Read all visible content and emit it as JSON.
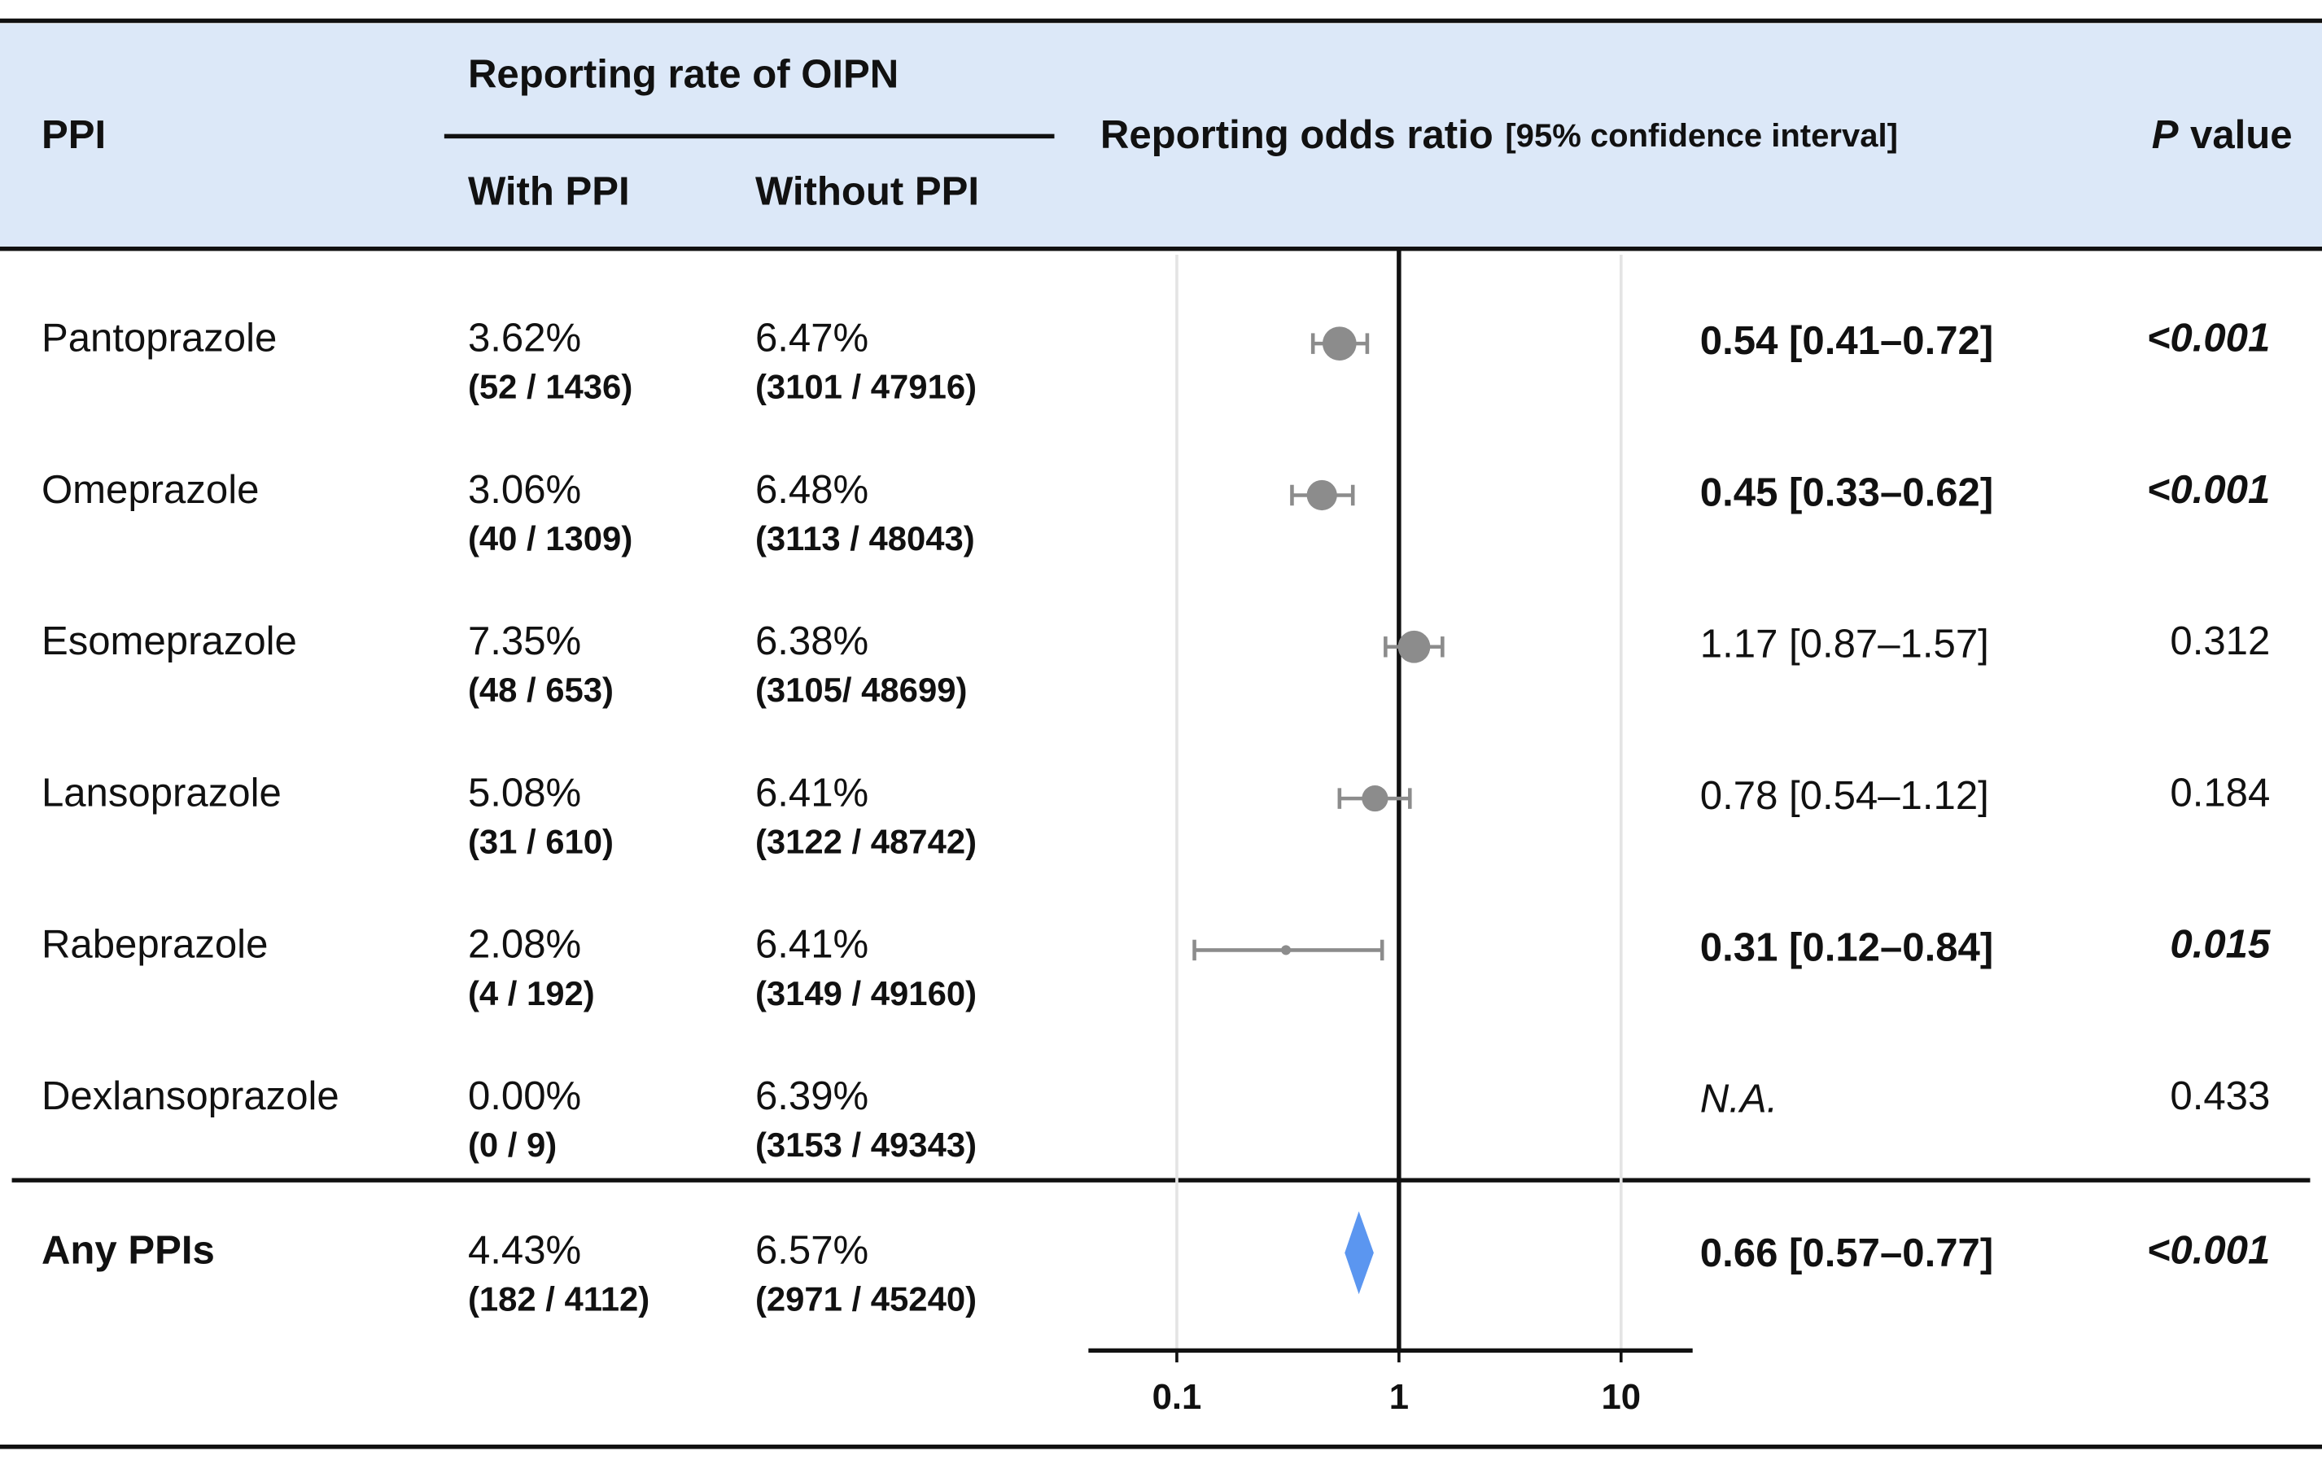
{
  "header": {
    "ppi": "PPI",
    "rate_group": "Reporting rate of OIPN",
    "with": "With PPI",
    "without": "Without PPI",
    "ror": "Reporting odds ratio",
    "ci": "[95% confidence interval]",
    "p_letter": "P",
    "p_rest": "value"
  },
  "chart_data": {
    "type": "forest",
    "categories": [
      "Pantoprazole",
      "Omeprazole",
      "Esomeprazole",
      "Lansoprazole",
      "Rabeprazole",
      "Dexlansoprazole",
      "Any PPIs"
    ],
    "with_rate": [
      "3.62%",
      "3.06%",
      "7.35%",
      "5.08%",
      "2.08%",
      "0.00%",
      "4.43%"
    ],
    "with_counts": [
      "(52 / 1436)",
      "(40 / 1309)",
      "(48 / 653)",
      "(31 / 610)",
      "(4 / 192)",
      "(0 / 9)",
      "(182 / 4112)"
    ],
    "without_rate": [
      "6.47%",
      "6.48%",
      "6.38%",
      "6.41%",
      "6.41%",
      "6.39%",
      "6.57%"
    ],
    "without_counts": [
      "(3101 / 47916)",
      "(3113 / 48043)",
      "(3105/ 48699)",
      "(3122 / 48742)",
      "(3149 / 49160)",
      "(3153 / 49343)",
      "(2971 / 45240)"
    ],
    "values": [
      0.54,
      0.45,
      1.17,
      0.78,
      0.31,
      null,
      0.66
    ],
    "lower": [
      0.41,
      0.33,
      0.87,
      0.54,
      0.12,
      null,
      0.57
    ],
    "upper": [
      0.72,
      0.62,
      1.57,
      1.12,
      0.84,
      null,
      0.77
    ],
    "value_labels": [
      "0.54 [0.41–0.72]",
      "0.45 [0.33–0.62]",
      "1.17 [0.87–1.57]",
      "0.78 [0.54–1.12]",
      "0.31 [0.12–0.84]",
      "N.A.",
      "0.66 [0.57–0.77]"
    ],
    "p_values": [
      "<0.001",
      "<0.001",
      "0.312",
      "0.184",
      "0.015",
      "0.433",
      "<0.001"
    ],
    "significant": [
      true,
      true,
      false,
      false,
      true,
      false,
      true
    ],
    "marker": [
      "circle",
      "circle",
      "circle",
      "circle",
      "circle",
      "circle",
      "diamond"
    ],
    "colors": {
      "circle": "#8c8c8c",
      "diamond": "#5b96f0"
    },
    "log_scale": true,
    "xlim": [
      0.04,
      21
    ],
    "xticks": [
      0.1,
      1,
      10
    ],
    "reference": 1,
    "grid": true
  }
}
